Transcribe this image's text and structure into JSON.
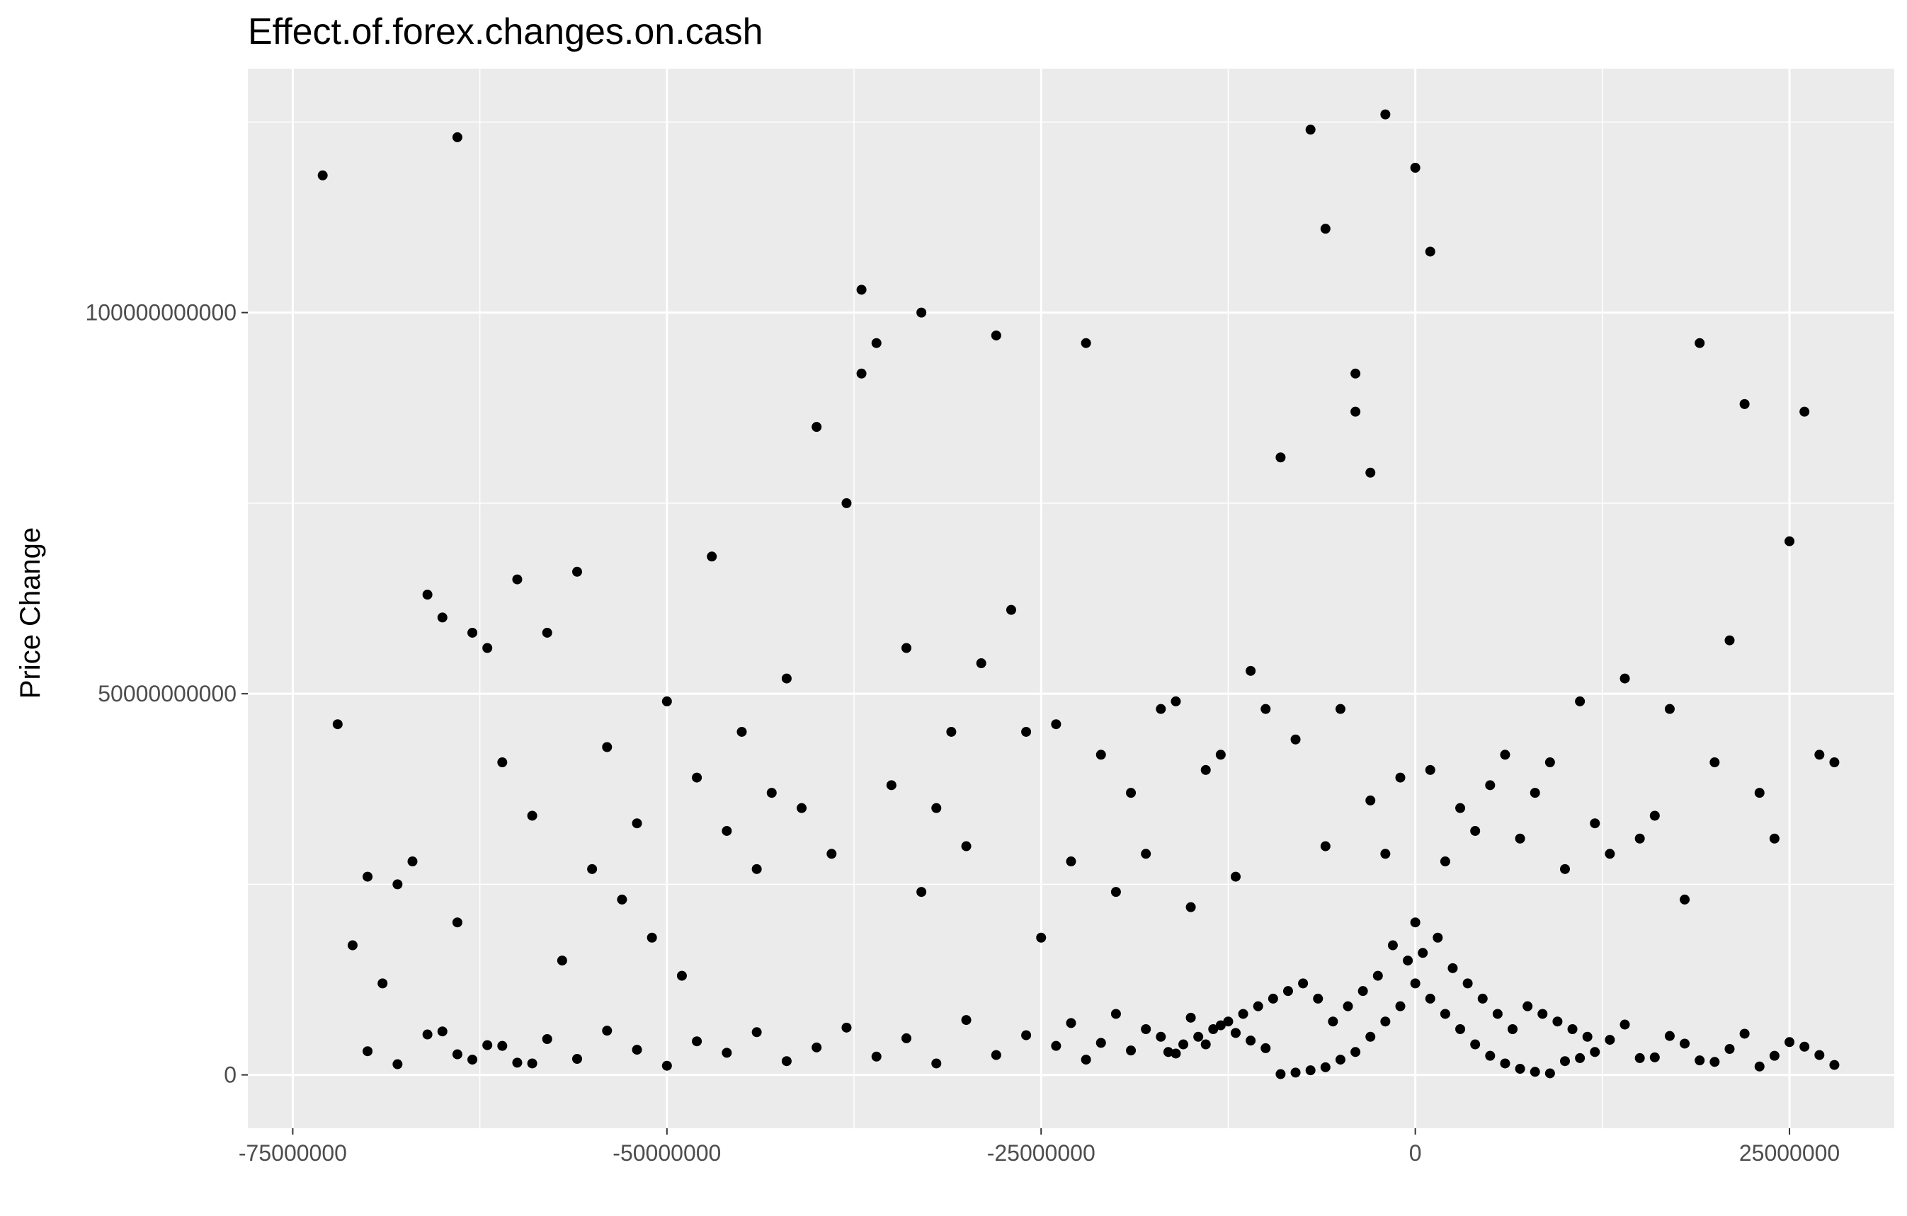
{
  "chart_data": {
    "type": "scatter",
    "title": "Effect.of.forex.changes.on.cash",
    "xlabel": "",
    "ylabel": "Price Change",
    "xlim": [
      -78000000,
      32000000
    ],
    "ylim": [
      -7000000000,
      132000000000
    ],
    "x_ticks": [
      -75000000,
      -50000000,
      -25000000,
      0,
      25000000
    ],
    "x_tick_labels": [
      "-75000000",
      "-50000000",
      "-25000000",
      "0",
      "25000000"
    ],
    "y_ticks": [
      0,
      50000000000,
      100000000000
    ],
    "y_tick_labels": [
      "0",
      "50000000000",
      "100000000000"
    ],
    "grid": true,
    "background": "#ebebeb",
    "grid_color": "#ffffff",
    "point_color": "#000000",
    "series": [
      {
        "x": [
          -73000000,
          -64000000,
          -47000000,
          -37000000,
          -36000000,
          -37000000,
          -33000000,
          -28000000,
          -22000000,
          -9000000,
          -7000000,
          -4000000,
          -2000000,
          0,
          1000000,
          -6000000,
          -4000000,
          -3000000,
          14000000,
          19000000,
          22000000,
          26000000,
          25000000,
          -62000000,
          -60000000,
          -58000000,
          -56000000,
          -54000000,
          -52000000,
          -50000000,
          -66000000,
          -65000000,
          -63000000,
          -61000000,
          -59000000,
          -55000000,
          -53000000,
          -51000000,
          -48000000,
          -45000000,
          -42000000,
          -40000000,
          -38000000,
          -35000000,
          -34000000,
          -31000000,
          -29000000,
          -27000000,
          -26000000,
          -24000000,
          -21000000,
          -19000000,
          -17000000,
          -16000000,
          -14000000,
          -13000000,
          -11000000,
          -10000000,
          -8000000,
          -5000000,
          -3000000,
          -1000000,
          1000000,
          3000000,
          5000000,
          6000000,
          8000000,
          9000000,
          11000000,
          12000000,
          15000000,
          16000000,
          17000000,
          20000000,
          21000000,
          23000000,
          24000000,
          27000000,
          28000000,
          -72000000,
          -70000000,
          -68000000,
          -67000000,
          -46000000,
          -44000000,
          -43000000,
          -41000000,
          -39000000,
          -32000000,
          -30000000,
          -23000000,
          -20000000,
          -18000000,
          -15000000,
          -12000000,
          -2000000,
          2000000,
          4000000,
          7000000,
          10000000,
          13000000,
          18000000,
          -71000000,
          -69000000,
          -64000000,
          -57000000,
          -49000000,
          -33000000,
          -25000000,
          -6000000,
          0,
          1500000,
          -1500000,
          500000,
          -500000,
          2500000,
          -2500000,
          3500000,
          -3500000,
          4500000,
          -4500000,
          5500000,
          -5500000,
          6500000,
          -6500000,
          -7500000,
          7500000,
          -8500000,
          8500000,
          -9500000,
          9500000,
          -10500000,
          10500000,
          -11500000,
          11500000,
          -12500000,
          -13500000,
          -14500000,
          -15500000,
          -16500000,
          0,
          1000000,
          -1000000,
          2000000,
          -2000000,
          3000000,
          -3000000,
          4000000,
          -4000000,
          5000000,
          -5000000,
          6000000,
          -6000000,
          7000000,
          -7000000,
          8000000,
          -8000000,
          9000000,
          -9000000,
          10000000,
          -10000000,
          -11000000,
          11000000,
          -12000000,
          12000000,
          -13000000,
          -14000000,
          -15000000,
          -16000000,
          -17000000,
          -18000000,
          -19000000,
          -20000000,
          -21000000,
          -22000000,
          -23000000,
          -24000000,
          -26000000,
          -28000000,
          -30000000,
          -32000000,
          -34000000,
          -36000000,
          -38000000,
          -40000000,
          -42000000,
          -44000000,
          -46000000,
          -48000000,
          -50000000,
          -52000000,
          -54000000,
          -56000000,
          -58000000,
          -60000000,
          -62000000,
          -64000000,
          -66000000,
          -68000000,
          -70000000,
          14000000,
          16000000,
          18000000,
          20000000,
          22000000,
          24000000,
          26000000,
          28000000,
          13000000,
          15000000,
          17000000,
          19000000,
          21000000,
          23000000,
          25000000,
          27000000,
          -65000000,
          -63000000,
          -61000000,
          -59000000
        ],
        "y": [
          118000000000,
          123000000000,
          68000000000,
          103000000000,
          96000000000,
          92000000000,
          100000000000,
          97000000000,
          96000000000,
          81000000000,
          124000000000,
          87000000000,
          126000000000,
          119000000000,
          108000000000,
          111000000000,
          92000000000,
          79000000000,
          52000000000,
          96000000000,
          88000000000,
          87000000000,
          70000000000,
          56000000000,
          65000000000,
          58000000000,
          66000000000,
          43000000000,
          33000000000,
          49000000000,
          63000000000,
          60000000000,
          58000000000,
          41000000000,
          34000000000,
          27000000000,
          23000000000,
          18000000000,
          39000000000,
          45000000000,
          52000000000,
          85000000000,
          75000000000,
          38000000000,
          56000000000,
          45000000000,
          54000000000,
          61000000000,
          45000000000,
          46000000000,
          42000000000,
          37000000000,
          48000000000,
          49000000000,
          40000000000,
          42000000000,
          53000000000,
          48000000000,
          44000000000,
          48000000000,
          36000000000,
          39000000000,
          40000000000,
          35000000000,
          38000000000,
          42000000000,
          37000000000,
          41000000000,
          49000000000,
          33000000000,
          31000000000,
          34000000000,
          48000000000,
          41000000000,
          57000000000,
          37000000000,
          31000000000,
          42000000000,
          41000000000,
          46000000000,
          26000000000,
          25000000000,
          28000000000,
          32000000000,
          27000000000,
          37000000000,
          35000000000,
          29000000000,
          35000000000,
          30000000000,
          28000000000,
          24000000000,
          29000000000,
          22000000000,
          26000000000,
          29000000000,
          28000000000,
          32000000000,
          31000000000,
          27000000000,
          29000000000,
          23000000000,
          17000000000,
          12000000000,
          20000000000,
          15000000000,
          13000000000,
          24000000000,
          18000000000,
          30000000000,
          20000000000,
          18000000000,
          17000000000,
          16000000000,
          15000000000,
          14000000000,
          13000000000,
          12000000000,
          11000000000,
          10000000000,
          9000000000,
          8000000000,
          7000000000,
          6000000000,
          10000000000,
          12000000000,
          9000000000,
          11000000000,
          8000000000,
          10000000000,
          7000000000,
          9000000000,
          6000000000,
          8000000000,
          5000000000,
          7000000000,
          6000000000,
          5000000000,
          4000000000,
          3000000000,
          12000000000,
          10000000000,
          9000000000,
          8000000000,
          7000000000,
          6000000000,
          5000000000,
          4000000000,
          3000000000,
          2500000000,
          2000000000,
          1500000000,
          1000000000,
          800000000,
          600000000,
          400000000,
          300000000,
          200000000,
          100000000,
          1800000000,
          3500000000,
          4500000000,
          2200000000,
          5500000000,
          3000000000,
          6500000000,
          4000000000,
          7500000000,
          2800000000,
          5000000000,
          6000000000,
          3200000000,
          8000000000,
          4200000000,
          2000000000,
          6800000000,
          3800000000,
          5200000000,
          2600000000,
          7200000000,
          1500000000,
          4800000000,
          2400000000,
          6200000000,
          3600000000,
          1800000000,
          5600000000,
          2900000000,
          4400000000,
          1200000000,
          3300000000,
          5800000000,
          2100000000,
          4700000000,
          1600000000,
          3900000000,
          2700000000,
          5300000000,
          1400000000,
          3100000000,
          6600000000,
          2300000000,
          4100000000,
          1700000000,
          5400000000,
          2500000000,
          3700000000,
          1300000000,
          4600000000,
          2200000000,
          5100000000,
          1900000000,
          3400000000,
          1100000000,
          4300000000,
          2600000000,
          5700000000,
          2000000000,
          3800000000,
          1500000000
        ]
      }
    ]
  }
}
